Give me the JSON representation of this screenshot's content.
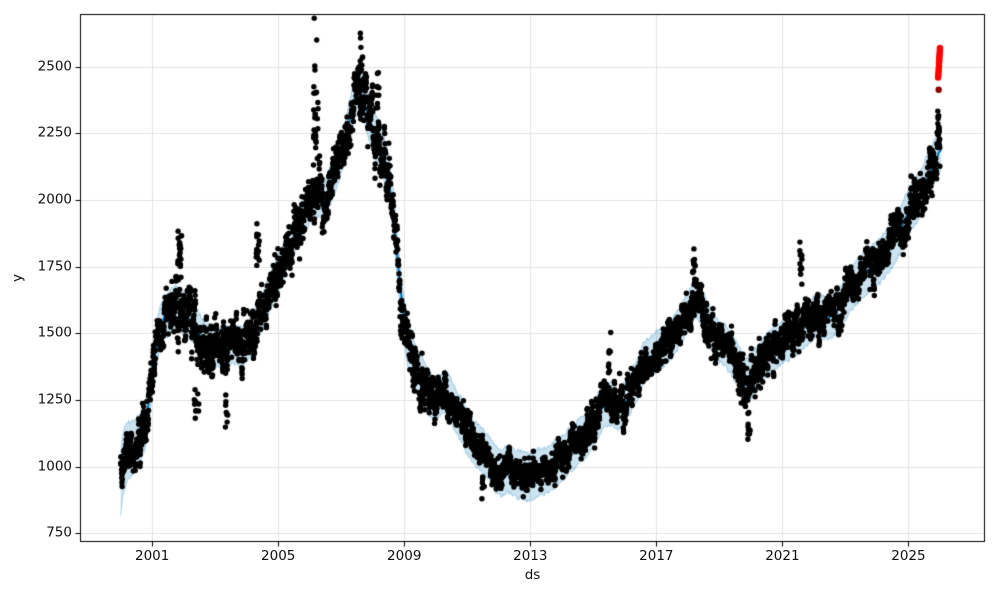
{
  "figure": {
    "background": "#ffffff"
  },
  "chart_data": {
    "type": "scatter",
    "subtype": "prophet-forecast (observations + trend line + uncertainty band + anomalies)",
    "title": "",
    "xlabel": "ds",
    "ylabel": "y",
    "xlim": [
      1998.71,
      2027.43
    ],
    "ylim": [
      717,
      2698
    ],
    "xticks": [
      "2001",
      "2005",
      "2009",
      "2013",
      "2017",
      "2021",
      "2025"
    ],
    "xtick_values": [
      2001,
      2005,
      2009,
      2013,
      2017,
      2021,
      2025
    ],
    "yticks": [
      "750",
      "1000",
      "1250",
      "1500",
      "1750",
      "2000",
      "2250",
      "2500"
    ],
    "ytick_values": [
      750,
      1000,
      1250,
      1500,
      1750,
      2000,
      2250,
      2500
    ],
    "grid": true,
    "grid_color": "#e4e4e4",
    "legend": null,
    "spine_color": "#000000",
    "trend": {
      "name": "forecast yhat",
      "color": "#0072b2",
      "linewidth": 2.1,
      "jitter_amp": 10,
      "jitter_step": 0.055,
      "points": [
        [
          2000.0,
          935
        ],
        [
          2000.08,
          1010
        ],
        [
          2000.2,
          1055
        ],
        [
          2000.4,
          1075
        ],
        [
          2000.6,
          1100
        ],
        [
          2000.8,
          1160
        ],
        [
          2000.95,
          1290
        ],
        [
          2001.1,
          1430
        ],
        [
          2001.25,
          1525
        ],
        [
          2001.4,
          1560
        ],
        [
          2001.6,
          1585
        ],
        [
          2001.75,
          1600
        ],
        [
          2001.9,
          1585
        ],
        [
          2002.1,
          1565
        ],
        [
          2002.3,
          1550
        ],
        [
          2002.45,
          1510
        ],
        [
          2002.6,
          1470
        ],
        [
          2002.8,
          1455
        ],
        [
          2003.0,
          1452
        ],
        [
          2003.3,
          1448
        ],
        [
          2003.6,
          1458
        ],
        [
          2003.85,
          1452
        ],
        [
          2004.1,
          1478
        ],
        [
          2004.3,
          1530
        ],
        [
          2004.5,
          1585
        ],
        [
          2004.7,
          1645
        ],
        [
          2004.9,
          1700
        ],
        [
          2005.1,
          1755
        ],
        [
          2005.3,
          1815
        ],
        [
          2005.5,
          1860
        ],
        [
          2005.7,
          1915
        ],
        [
          2005.9,
          1965
        ],
        [
          2006.1,
          2000
        ],
        [
          2006.3,
          2012
        ],
        [
          2006.45,
          1988
        ],
        [
          2006.6,
          2040
        ],
        [
          2006.8,
          2100
        ],
        [
          2007.0,
          2170
        ],
        [
          2007.15,
          2240
        ],
        [
          2007.3,
          2320
        ],
        [
          2007.45,
          2392
        ],
        [
          2007.55,
          2415
        ],
        [
          2007.7,
          2392
        ],
        [
          2007.9,
          2300
        ],
        [
          2008.1,
          2232
        ],
        [
          2008.3,
          2180
        ],
        [
          2008.5,
          2092
        ],
        [
          2008.65,
          1950
        ],
        [
          2008.8,
          1762
        ],
        [
          2008.95,
          1585
        ],
        [
          2009.1,
          1470
        ],
        [
          2009.3,
          1392
        ],
        [
          2009.45,
          1348
        ],
        [
          2009.6,
          1330
        ],
        [
          2009.75,
          1282
        ],
        [
          2009.9,
          1255
        ],
        [
          2010.1,
          1262
        ],
        [
          2010.3,
          1280
        ],
        [
          2010.45,
          1262
        ],
        [
          2010.6,
          1215
        ],
        [
          2010.8,
          1180
        ],
        [
          2011.0,
          1125
        ],
        [
          2011.2,
          1090
        ],
        [
          2011.45,
          1062
        ],
        [
          2011.65,
          1040
        ],
        [
          2011.85,
          1000
        ],
        [
          2012.05,
          975
        ],
        [
          2012.3,
          992
        ],
        [
          2012.5,
          975
        ],
        [
          2012.7,
          968
        ],
        [
          2012.9,
          960
        ],
        [
          2013.05,
          958
        ],
        [
          2013.25,
          978
        ],
        [
          2013.5,
          985
        ],
        [
          2013.75,
          1005
        ],
        [
          2013.95,
          1022
        ],
        [
          2014.2,
          1055
        ],
        [
          2014.45,
          1085
        ],
        [
          2014.7,
          1110
        ],
        [
          2014.9,
          1135
        ],
        [
          2015.1,
          1180
        ],
        [
          2015.3,
          1222
        ],
        [
          2015.55,
          1238
        ],
        [
          2015.75,
          1215
        ],
        [
          2015.95,
          1228
        ],
        [
          2016.15,
          1272
        ],
        [
          2016.4,
          1332
        ],
        [
          2016.6,
          1390
        ],
        [
          2016.85,
          1415
        ],
        [
          2017.1,
          1440
        ],
        [
          2017.35,
          1465
        ],
        [
          2017.6,
          1495
        ],
        [
          2017.85,
          1545
        ],
        [
          2018.05,
          1592
        ],
        [
          2018.25,
          1638
        ],
        [
          2018.45,
          1590
        ],
        [
          2018.7,
          1520
        ],
        [
          2018.95,
          1478
        ],
        [
          2019.2,
          1452
        ],
        [
          2019.4,
          1420
        ],
        [
          2019.6,
          1382
        ],
        [
          2019.8,
          1308
        ],
        [
          2019.95,
          1332
        ],
        [
          2020.15,
          1362
        ],
        [
          2020.35,
          1395
        ],
        [
          2020.6,
          1430
        ],
        [
          2020.85,
          1455
        ],
        [
          2021.1,
          1470
        ],
        [
          2021.35,
          1492
        ],
        [
          2021.6,
          1512
        ],
        [
          2021.85,
          1545
        ],
        [
          2022.1,
          1572
        ],
        [
          2022.35,
          1560
        ],
        [
          2022.6,
          1565
        ],
        [
          2022.85,
          1598
        ],
        [
          2023.1,
          1650
        ],
        [
          2023.35,
          1692
        ],
        [
          2023.6,
          1722
        ],
        [
          2023.85,
          1752
        ],
        [
          2024.1,
          1772
        ],
        [
          2024.35,
          1808
        ],
        [
          2024.6,
          1856
        ],
        [
          2024.85,
          1920
        ],
        [
          2025.05,
          1965
        ],
        [
          2025.3,
          2008
        ],
        [
          2025.55,
          2068
        ],
        [
          2025.8,
          2138
        ],
        [
          2026.05,
          2200
        ]
      ]
    },
    "band": {
      "name": "uncertainty interval",
      "fill": "rgba(0,114,178,0.2)",
      "edge": "rgba(0,114,178,0.28)",
      "edge_jitter_amp": 9,
      "edge_jitter_step": 0.032,
      "halfwidth": [
        [
          2000.0,
          120
        ],
        [
          2000.5,
          95
        ],
        [
          2001.0,
          80
        ],
        [
          2003.0,
          75
        ],
        [
          2005.0,
          68
        ],
        [
          2007.0,
          70
        ],
        [
          2007.6,
          80
        ],
        [
          2009.0,
          85
        ],
        [
          2010.0,
          78
        ],
        [
          2012.0,
          85
        ],
        [
          2013.0,
          90
        ],
        [
          2015.0,
          80
        ],
        [
          2017.0,
          75
        ],
        [
          2018.3,
          70
        ],
        [
          2019.0,
          75
        ],
        [
          2020.0,
          85
        ],
        [
          2021.0,
          78
        ],
        [
          2023.0,
          80
        ],
        [
          2024.5,
          85
        ],
        [
          2026.05,
          85
        ]
      ]
    },
    "actuals": {
      "name": "observed y",
      "color": "#000000",
      "marker_radius": 2.7,
      "t_start": 2000.0,
      "t_end": 2026.0,
      "points_per_year": 190,
      "ar_decay": 0.78,
      "ar_gain": 0.5,
      "micro_jitter": 9,
      "initial_offset": 60,
      "spread": [
        [
          2000.2,
          45
        ],
        [
          2001.0,
          60
        ],
        [
          2001.9,
          70
        ],
        [
          2002.5,
          75
        ],
        [
          2003.5,
          65
        ],
        [
          2004.4,
          70
        ],
        [
          2005.5,
          60
        ],
        [
          2006.2,
          80
        ],
        [
          2007.0,
          65
        ],
        [
          2007.6,
          65
        ],
        [
          2008.5,
          85
        ],
        [
          2009.5,
          55
        ],
        [
          2010.5,
          45
        ],
        [
          2011.5,
          42
        ],
        [
          2012.5,
          38
        ],
        [
          2013.5,
          38
        ],
        [
          2014.5,
          40
        ],
        [
          2015.5,
          50
        ],
        [
          2016.5,
          45
        ],
        [
          2017.5,
          45
        ],
        [
          2018.2,
          55
        ],
        [
          2019.0,
          45
        ],
        [
          2020.0,
          60
        ],
        [
          2021.0,
          45
        ],
        [
          2021.6,
          60
        ],
        [
          2022.5,
          45
        ],
        [
          2023.5,
          45
        ],
        [
          2024.5,
          50
        ],
        [
          2025.5,
          60
        ],
        [
          2026.0,
          65
        ]
      ],
      "outlier_clusters": [
        [
          2001.88,
          1790,
          0.07,
          70,
          22
        ],
        [
          2002.4,
          1225,
          0.08,
          50,
          10
        ],
        [
          2003.35,
          1185,
          0.06,
          45,
          8
        ],
        [
          2004.35,
          1810,
          0.06,
          60,
          16
        ],
        [
          2006.2,
          2330,
          0.08,
          115,
          28
        ],
        [
          2007.62,
          2520,
          0.06,
          45,
          14
        ],
        [
          2008.15,
          2380,
          0.06,
          55,
          12
        ],
        [
          2009.95,
          1305,
          0.1,
          40,
          12
        ],
        [
          2011.5,
          945,
          0.04,
          25,
          7
        ],
        [
          2012.92,
          942,
          0.04,
          25,
          7
        ],
        [
          2015.52,
          1408,
          0.04,
          35,
          9
        ],
        [
          2018.2,
          1742,
          0.05,
          45,
          14
        ],
        [
          2019.93,
          1140,
          0.04,
          45,
          9
        ],
        [
          2021.58,
          1762,
          0.04,
          55,
          12
        ],
        [
          2025.72,
          2120,
          0.05,
          55,
          12
        ],
        [
          2025.95,
          2290,
          0.03,
          50,
          10
        ]
      ]
    },
    "anomalies": {
      "name": "flagged anomalies",
      "color": "#ff0000",
      "marker_radius": 3.2,
      "points": [
        [
          2025.94,
          2460
        ],
        [
          2025.95,
          2468
        ],
        [
          2025.95,
          2476
        ],
        [
          2025.96,
          2484
        ],
        [
          2025.96,
          2492
        ],
        [
          2025.97,
          2500
        ],
        [
          2025.97,
          2508
        ],
        [
          2025.97,
          2516
        ],
        [
          2025.98,
          2524
        ],
        [
          2025.98,
          2531
        ],
        [
          2025.98,
          2538
        ],
        [
          2025.99,
          2545
        ],
        [
          2025.99,
          2552
        ],
        [
          2026.0,
          2559
        ],
        [
          2026.0,
          2566
        ],
        [
          2026.0,
          2571
        ]
      ],
      "dark_point": {
        "color": "#8b0000",
        "point": [
          2025.96,
          2414
        ]
      }
    },
    "seed": 1337
  }
}
